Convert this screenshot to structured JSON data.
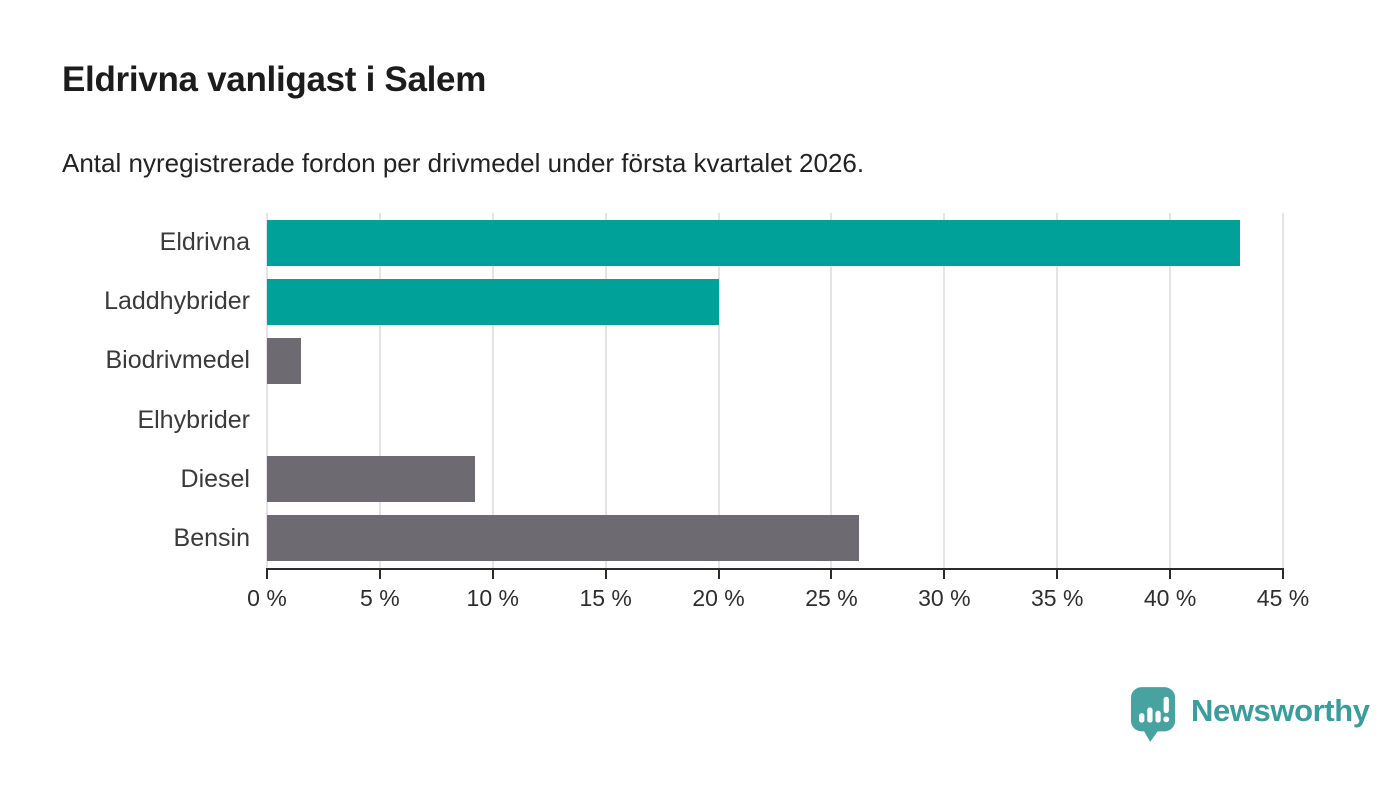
{
  "header": {
    "title": "Eldrivna vanligast i Salem",
    "subtitle": "Antal nyregistrerade fordon per drivmedel under första kvartalet 2026."
  },
  "chart_data": {
    "type": "bar",
    "orientation": "horizontal",
    "title": "Eldrivna vanligast i Salem",
    "subtitle": "Antal nyregistrerade fordon per drivmedel under första kvartalet 2026.",
    "categories": [
      "Eldrivna",
      "Laddhybrider",
      "Biodrivmedel",
      "Elhybrider",
      "Diesel",
      "Bensin"
    ],
    "values": [
      43.1,
      20.0,
      1.5,
      0,
      9.2,
      26.2
    ],
    "unit": "%",
    "xlim": [
      0,
      45
    ],
    "tick_step": 5,
    "tick_labels": [
      "0 %",
      "5 %",
      "10 %",
      "15 %",
      "20 %",
      "25 %",
      "30 %",
      "35 %",
      "40 %",
      "45 %"
    ],
    "bar_colors": [
      "#00a198",
      "#00a198",
      "#6d6a71",
      "#6d6a71",
      "#6d6a71",
      "#6d6a71"
    ],
    "highlight_color": "#00a198",
    "default_color": "#6d6a71",
    "gridline_color": "#e4e4e4",
    "axis_color": "#2b2b2b",
    "grid": true,
    "legend": false
  },
  "branding": {
    "logo_text": "Newsworthy",
    "logo_text_color": "#3a9c9b",
    "logo_icon_color": "#47a2a0",
    "logo_icon": "speech-bubble-bar-chart-exclamation"
  }
}
